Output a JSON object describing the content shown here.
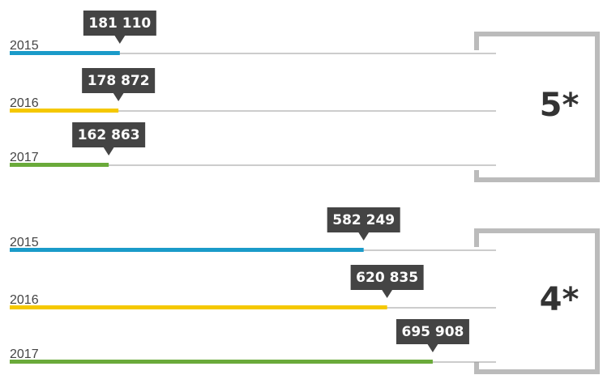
{
  "chart_data": [
    {
      "type": "bar",
      "orientation": "horizontal",
      "group_label": "5*",
      "categories": [
        "2015",
        "2016",
        "2017"
      ],
      "values": [
        181110,
        178872,
        162863
      ],
      "value_labels": [
        "181 110",
        "178 872",
        "162 863"
      ],
      "colors": [
        "#1a9bc9",
        "#f5c800",
        "#6aaa3a"
      ],
      "xlim": [
        0,
        800000
      ]
    },
    {
      "type": "bar",
      "orientation": "horizontal",
      "group_label": "4*",
      "categories": [
        "2015",
        "2016",
        "2017"
      ],
      "values": [
        582249,
        620835,
        695908
      ],
      "value_labels": [
        "582 249",
        "620 835",
        "695 908"
      ],
      "colors": [
        "#1a9bc9",
        "#f5c800",
        "#6aaa3a"
      ],
      "xlim": [
        0,
        800000
      ]
    }
  ]
}
